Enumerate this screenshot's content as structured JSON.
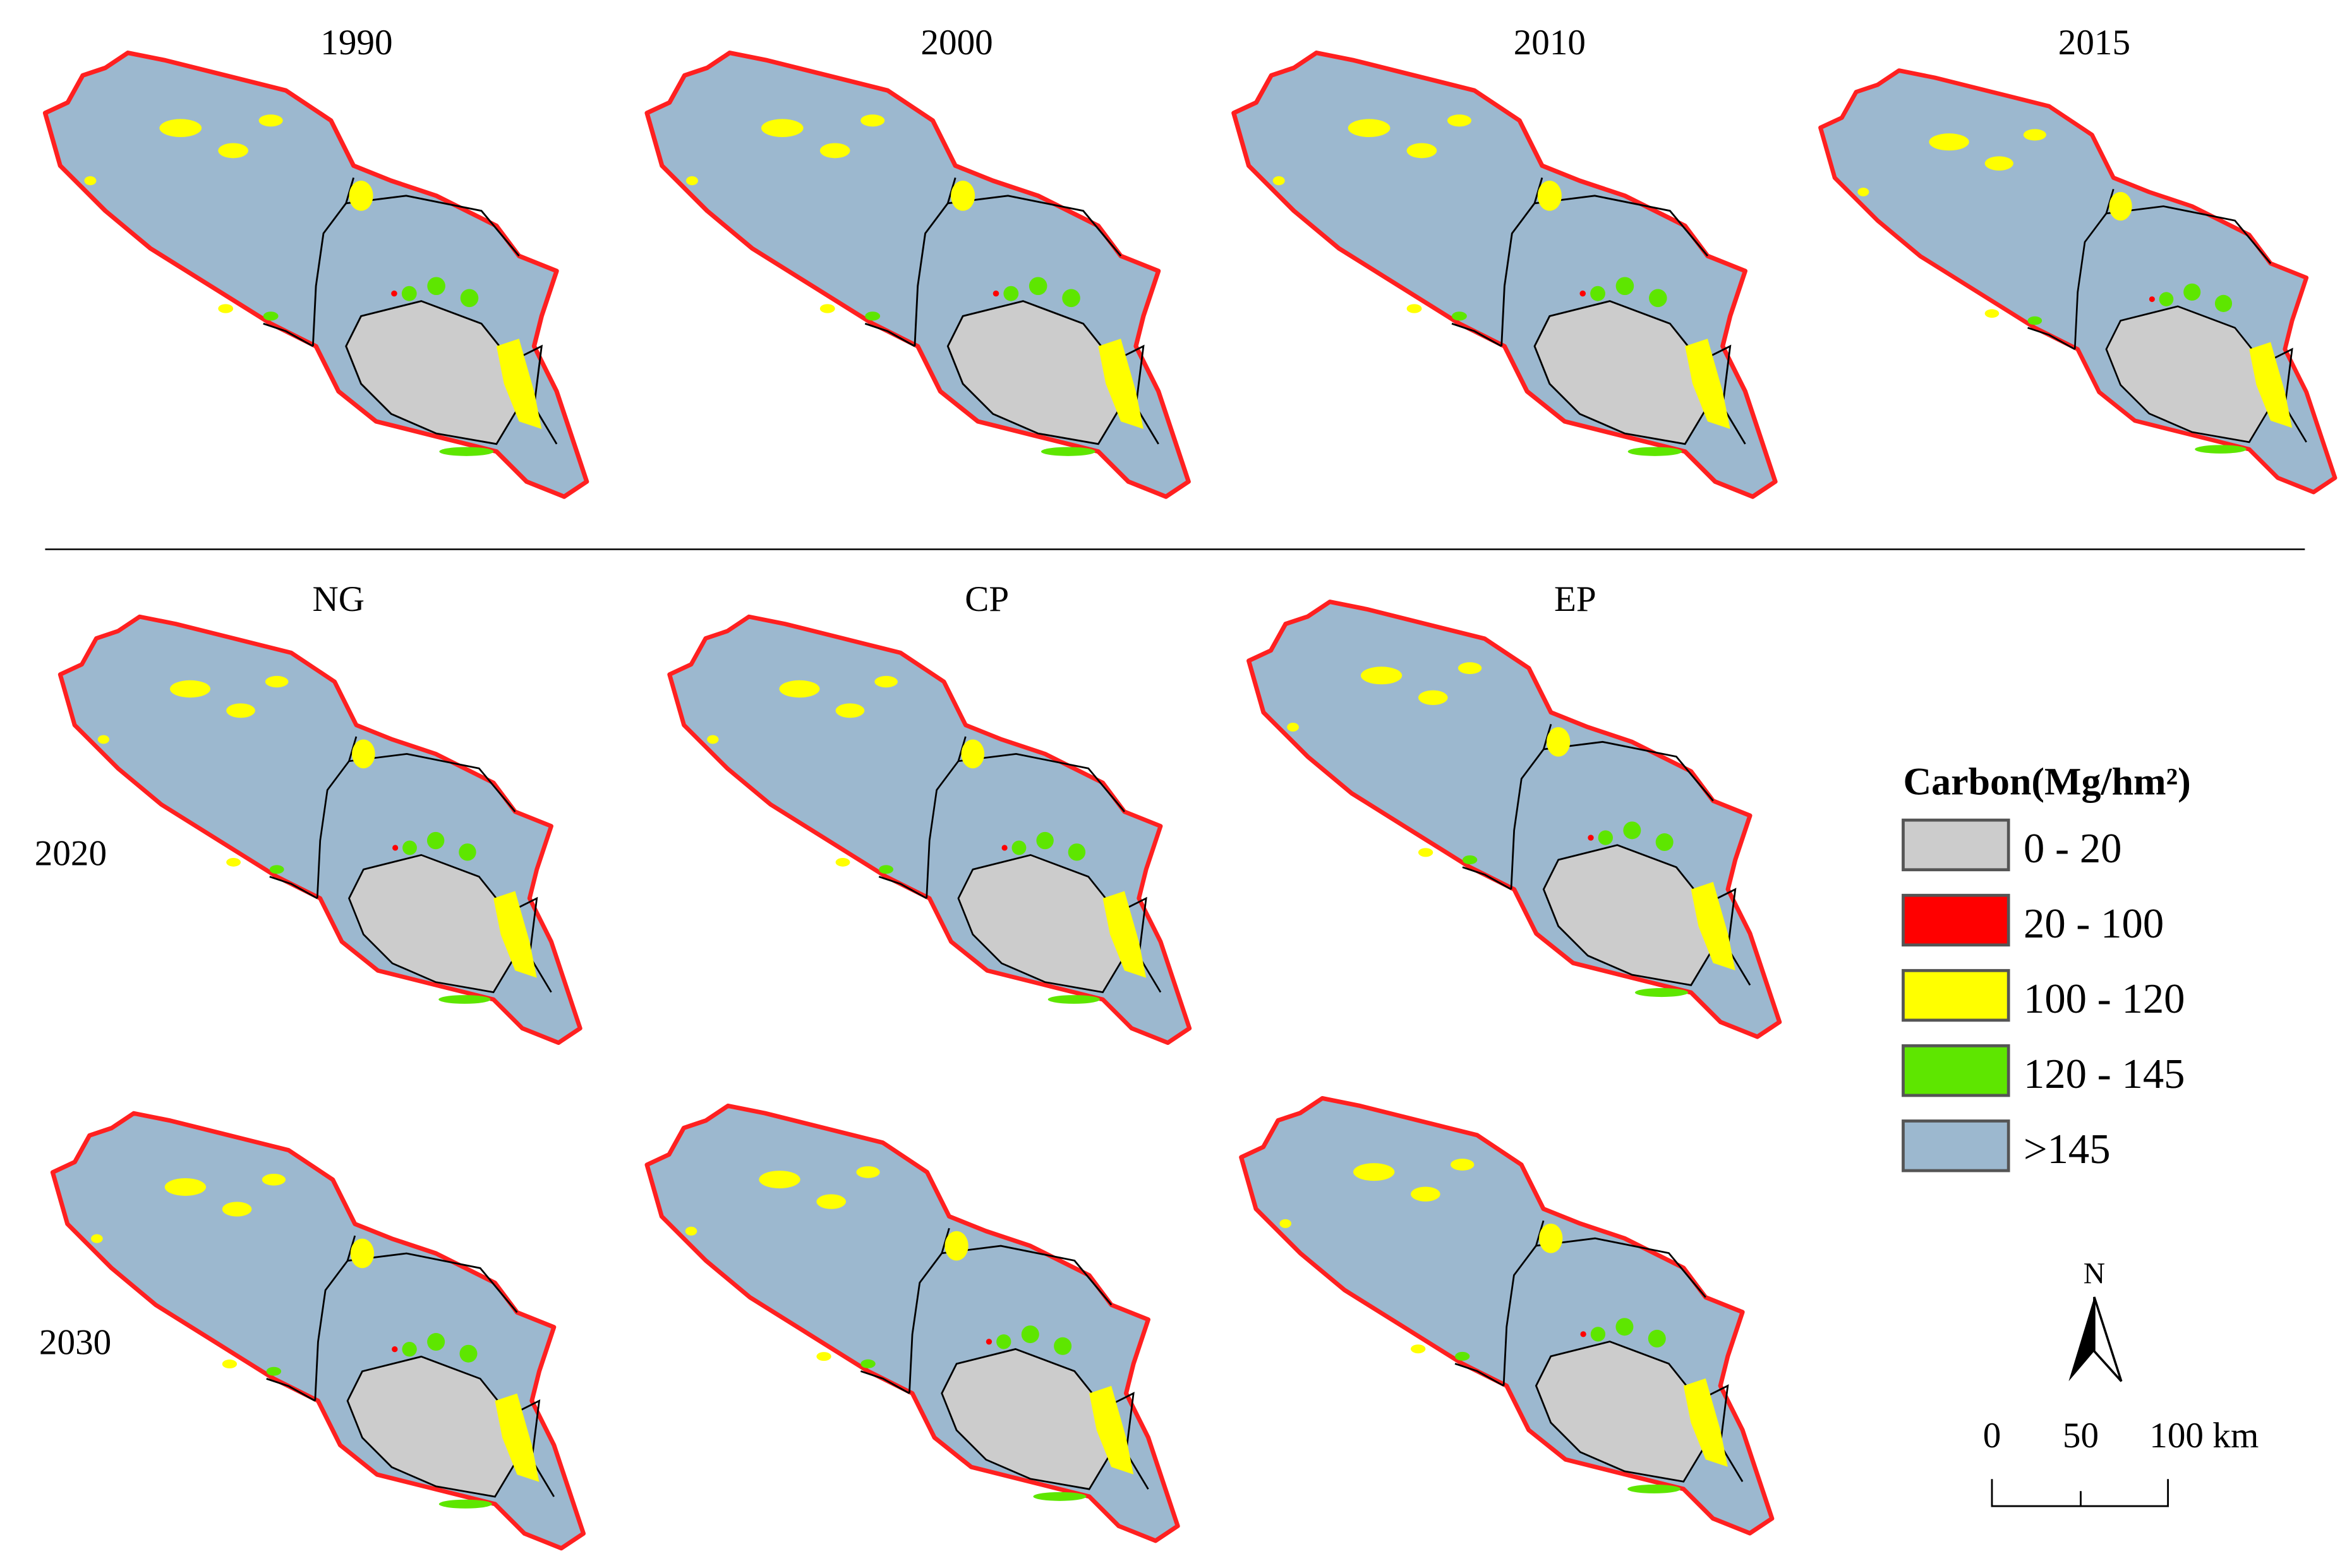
{
  "panels": {
    "titles": [
      "1990",
      "2000",
      "2010",
      "2015",
      "NG",
      "CP",
      "EP"
    ],
    "row_labels": [
      "2020",
      "2030"
    ]
  },
  "legend": {
    "title": "Carbon(Mg/hm²)",
    "items": [
      {
        "label": "0 - 20",
        "color": "#cccccc"
      },
      {
        "label": "20 - 100",
        "color": "#ff0000"
      },
      {
        "label": "100 - 120",
        "color": "#ffff00"
      },
      {
        "label": "120 - 145",
        "color": "#5ee600"
      },
      {
        "label": ">145",
        "color": "#9cb8cf"
      }
    ]
  },
  "north_arrow": {
    "label": "N"
  },
  "scale_bar": {
    "labels": [
      "0",
      "50",
      "100 km"
    ]
  }
}
